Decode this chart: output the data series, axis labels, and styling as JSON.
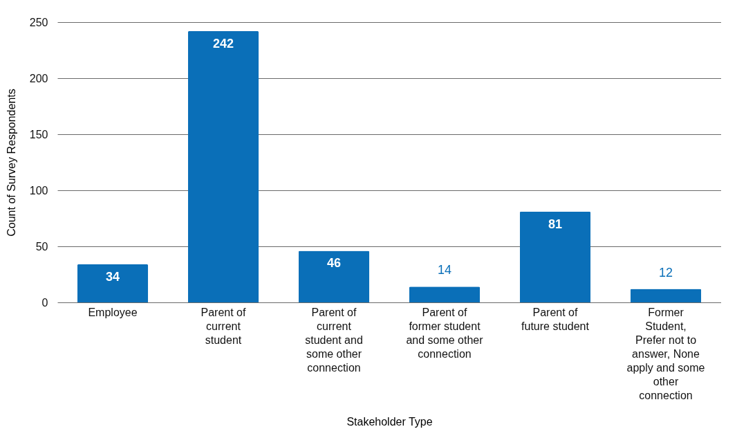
{
  "chart_data": {
    "type": "bar",
    "xlabel": "Stakeholder Type",
    "ylabel": "Count of Survey Respondents",
    "categories": [
      "Employee",
      "Parent of current student",
      "Parent of current student and some other connection",
      "Parent of former student and some other connection",
      "Parent of future student",
      "Former Student, Prefer not to answer, None apply and some other connection"
    ],
    "values": [
      34,
      242,
      46,
      14,
      81,
      12
    ],
    "color": "#0a6fb8",
    "ylim": [
      0,
      250
    ],
    "yticks": [
      0,
      50,
      100,
      150,
      200,
      250
    ],
    "grid": "y",
    "data_labels": true
  }
}
